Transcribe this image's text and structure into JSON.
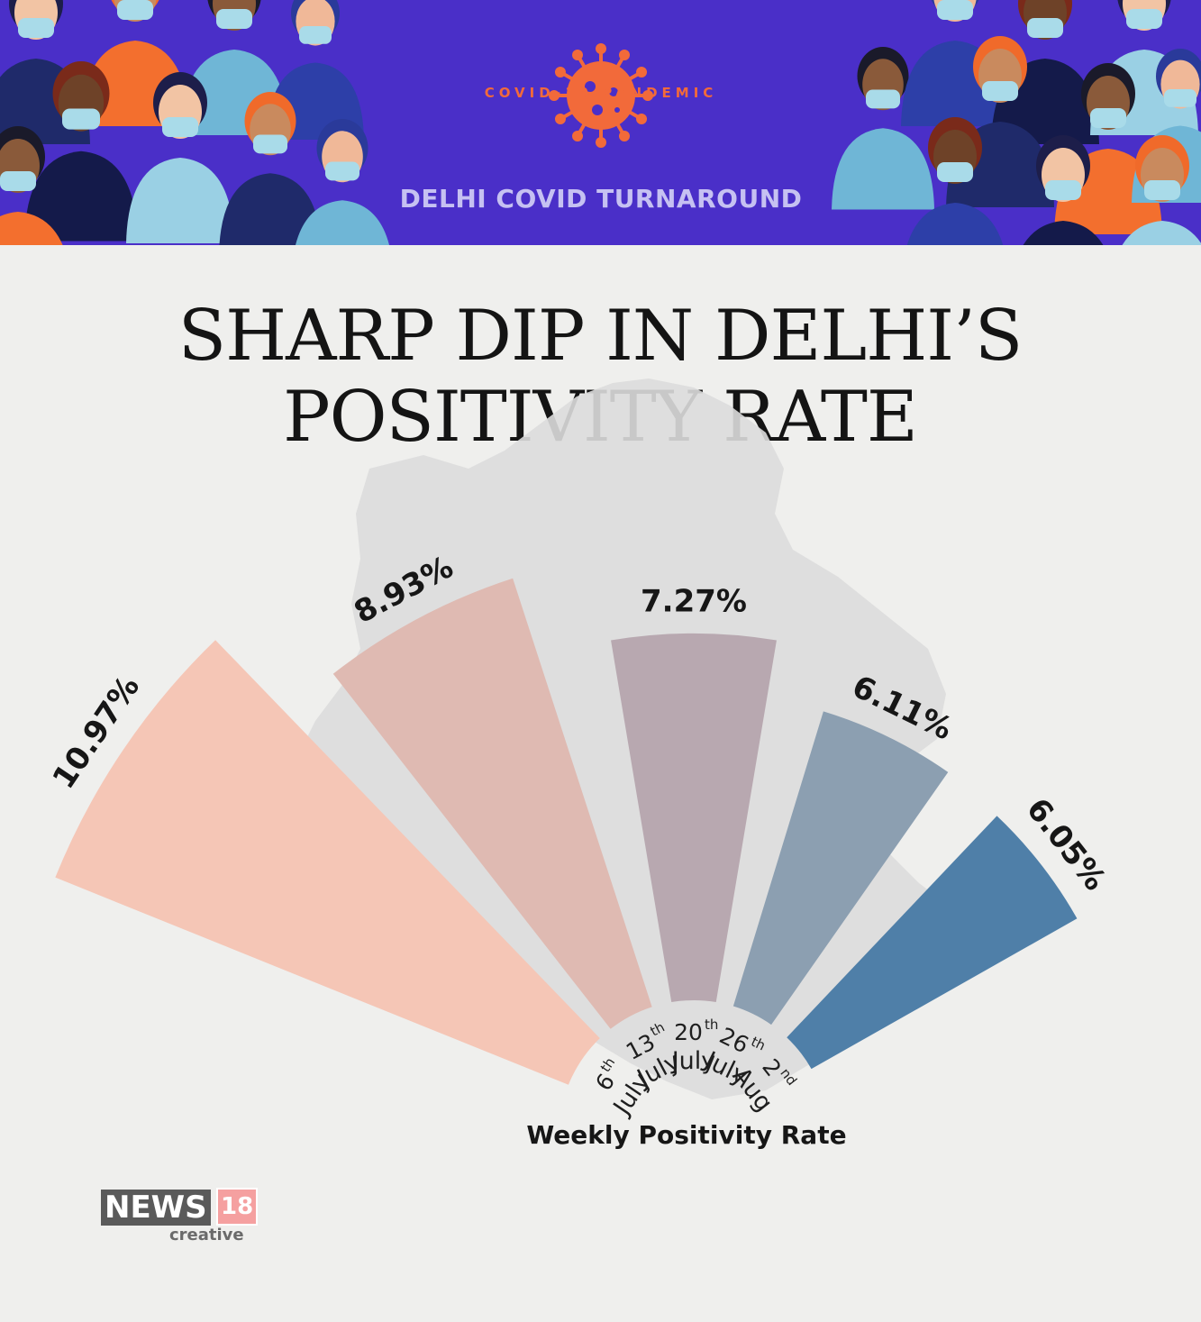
{
  "banner": {
    "kicker": "COVID-19 PANDEMIC",
    "title": "DELHI COVID TURNAROUND",
    "background_color": "#4a2fc8",
    "accent_color": "#f26a3a",
    "illustration": "crowd of people wearing face masks",
    "icon": "coronavirus-icon"
  },
  "headline": {
    "line1": "SHARP DIP IN DELHI’S",
    "line2": "POSITIVITY RATE"
  },
  "chart_data": {
    "type": "bar",
    "layout": "radial fan",
    "title": "Weekly Positivity Rate",
    "unit": "%",
    "categories": [
      {
        "day": "6",
        "suffix": "th",
        "month": "July"
      },
      {
        "day": "13",
        "suffix": "th",
        "month": "July"
      },
      {
        "day": "20",
        "suffix": "th",
        "month": "July"
      },
      {
        "day": "26",
        "suffix": "th",
        "month": "July"
      },
      {
        "day": "2",
        "suffix": "nd",
        "month": "Aug"
      }
    ],
    "values": [
      10.97,
      8.93,
      7.27,
      6.11,
      6.05
    ],
    "value_labels": [
      "10.97%",
      "8.93%",
      "7.27%",
      "6.11%",
      "6.05%"
    ],
    "colors": [
      "#f5c6b6",
      "#dfbab2",
      "#b8a8b0",
      "#8c9fb1",
      "#4f7fa8"
    ],
    "background_shape": "map of Delhi"
  },
  "logo": {
    "name": "NEWS",
    "number": "18",
    "sub": "creative"
  }
}
